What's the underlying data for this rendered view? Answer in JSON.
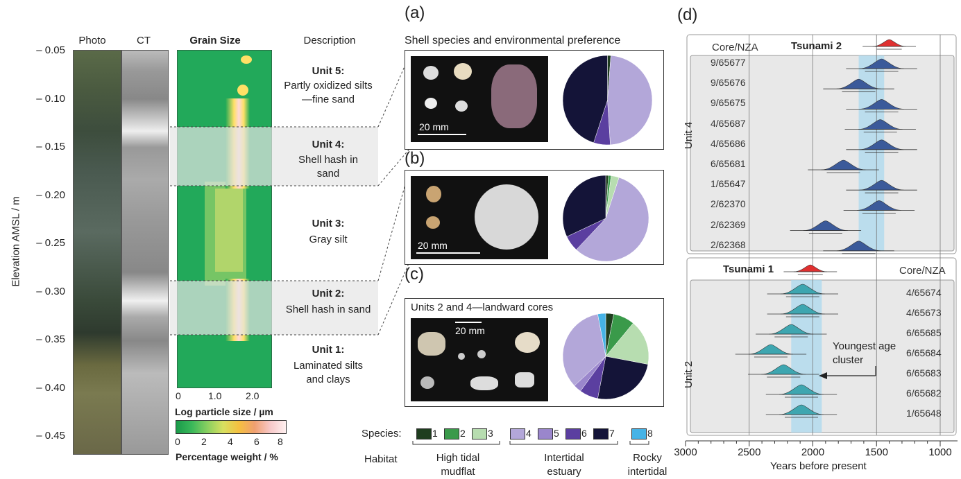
{
  "left": {
    "y_axis_label": "Elevation AMSL / m",
    "y_ticks": [
      "– 0.05",
      "– 0.10",
      "– 0.15",
      "– 0.20",
      "– 0.25",
      "– 0.30",
      "– 0.35",
      "– 0.40",
      "– 0.45"
    ],
    "col_photo": "Photo",
    "col_ct": "CT",
    "col_grain": "Grain Size",
    "col_desc": "Description",
    "grain_x_ticks": [
      "0",
      "1.0",
      "2.0"
    ],
    "grain_x_label": "Log particle size / µm",
    "cbar_ticks": [
      "0",
      "2",
      "4",
      "6",
      "8"
    ],
    "cbar_label": "Percentage weight / %",
    "units": [
      {
        "title": "Unit 5:",
        "body": "Partly oxidized silts—fine sand"
      },
      {
        "title": "Unit 4:",
        "body": "Shell hash in sand"
      },
      {
        "title": "Unit 3:",
        "body": "Gray silt"
      },
      {
        "title": "Unit 2:",
        "body": "Shell hash in sand"
      },
      {
        "title": "Unit 1:",
        "body": "Laminated silts and clays"
      }
    ]
  },
  "panels": {
    "a_letter": "(a)",
    "b_letter": "(b)",
    "c_letter": "(c)",
    "d_letter": "(d)",
    "a_title": "Shell species and environmental preference",
    "a_scale": "20 mm",
    "b_scale": "20 mm",
    "c_title": "Units 2 and 4—landward cores",
    "c_scale": "20 mm"
  },
  "pies": {
    "a": [
      {
        "species": 1,
        "v": 1.2
      },
      {
        "species": 4,
        "v": 47.8
      },
      {
        "species": 6,
        "v": 6
      },
      {
        "species": 7,
        "v": 45
      }
    ],
    "b": [
      {
        "species": 1,
        "v": 1
      },
      {
        "species": 2,
        "v": 1
      },
      {
        "species": 3,
        "v": 3
      },
      {
        "species": 4,
        "v": 57
      },
      {
        "species": 6,
        "v": 6
      },
      {
        "species": 7,
        "v": 32
      }
    ],
    "c": [
      {
        "species": 1,
        "v": 3
      },
      {
        "species": 2,
        "v": 8
      },
      {
        "species": 3,
        "v": 17
      },
      {
        "species": 7,
        "v": 25
      },
      {
        "species": 6,
        "v": 7
      },
      {
        "species": 5,
        "v": 3
      },
      {
        "species": 4,
        "v": 34
      },
      {
        "species": 8,
        "v": 3
      }
    ]
  },
  "species_colors": {
    "1": "#1f3d1f",
    "2": "#3a9a4a",
    "3": "#b7ddb0",
    "4": "#b3a7d9",
    "5": "#9a86cc",
    "6": "#5b3fa0",
    "7": "#141438",
    "8": "#46b3e6"
  },
  "legend": {
    "species_label": "Species:",
    "habitat_label": "Habitat",
    "species": [
      "1",
      "2",
      "3",
      "4",
      "5",
      "6",
      "7",
      "8"
    ],
    "habitats": [
      "High tidal mudflat",
      "Intertidal estuary",
      "Rocky intertidal"
    ]
  },
  "d": {
    "header_core": "Core/NZA",
    "tsunami2": "Tsunami 2",
    "tsunami1": "Tsunami 1",
    "unit4": "Unit 4",
    "unit2": "Unit 2",
    "unit4_cores": [
      "9/65677",
      "9/65676",
      "9/65675",
      "4/65687",
      "4/65686",
      "6/65681",
      "1/65647",
      "2/62370",
      "2/62369",
      "2/62368"
    ],
    "unit2_cores": [
      "4/65674",
      "4/65673",
      "6/65685",
      "6/65684",
      "6/65683",
      "6/65682",
      "1/65648"
    ],
    "annotation": "Youngest age cluster",
    "x_ticks": [
      "3000",
      "2500",
      "2000",
      "1500",
      "1000"
    ],
    "x_label": "Years before present"
  }
}
